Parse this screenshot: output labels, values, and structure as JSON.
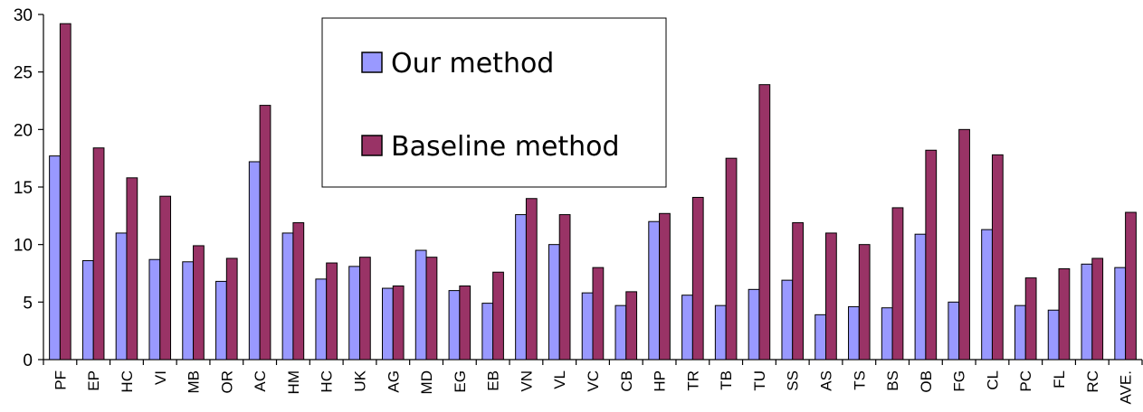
{
  "chart_data": {
    "type": "bar",
    "title": "",
    "xlabel": "",
    "ylabel": "",
    "ylim": [
      0,
      30
    ],
    "yticks": [
      0,
      5,
      10,
      15,
      20,
      25,
      30
    ],
    "grid": false,
    "legend_position": "top-center",
    "categories": [
      "PF",
      "EP",
      "HC",
      "VI",
      "MB",
      "OR",
      "AC",
      "HM",
      "HC",
      "UK",
      "AG",
      "MD",
      "EG",
      "EB",
      "VN",
      "VL",
      "VC",
      "CB",
      "HP",
      "TR",
      "TB",
      "TU",
      "SS",
      "AS",
      "TS",
      "BS",
      "OB",
      "FG",
      "CL",
      "PC",
      "FL",
      "RC",
      "AVE."
    ],
    "series": [
      {
        "name": "Our method",
        "color": "#9999ff",
        "values": [
          17.7,
          8.6,
          11.0,
          8.7,
          8.5,
          6.8,
          17.2,
          11.0,
          7.0,
          8.1,
          6.2,
          9.5,
          6.0,
          4.9,
          12.6,
          10.0,
          5.8,
          4.7,
          12.0,
          5.6,
          4.7,
          6.1,
          6.9,
          3.9,
          4.6,
          4.5,
          10.9,
          5.0,
          11.3,
          4.7,
          4.3,
          8.3,
          8.0
        ]
      },
      {
        "name": "Baseline method",
        "color": "#993366",
        "values": [
          29.2,
          18.4,
          15.8,
          14.2,
          9.9,
          8.8,
          22.1,
          11.9,
          8.4,
          8.9,
          6.4,
          8.9,
          6.4,
          7.6,
          14.0,
          12.6,
          8.0,
          5.9,
          12.7,
          14.1,
          17.5,
          23.9,
          11.9,
          11.0,
          10.0,
          13.2,
          18.2,
          20.0,
          17.8,
          7.1,
          7.9,
          8.8,
          12.8
        ]
      }
    ]
  }
}
